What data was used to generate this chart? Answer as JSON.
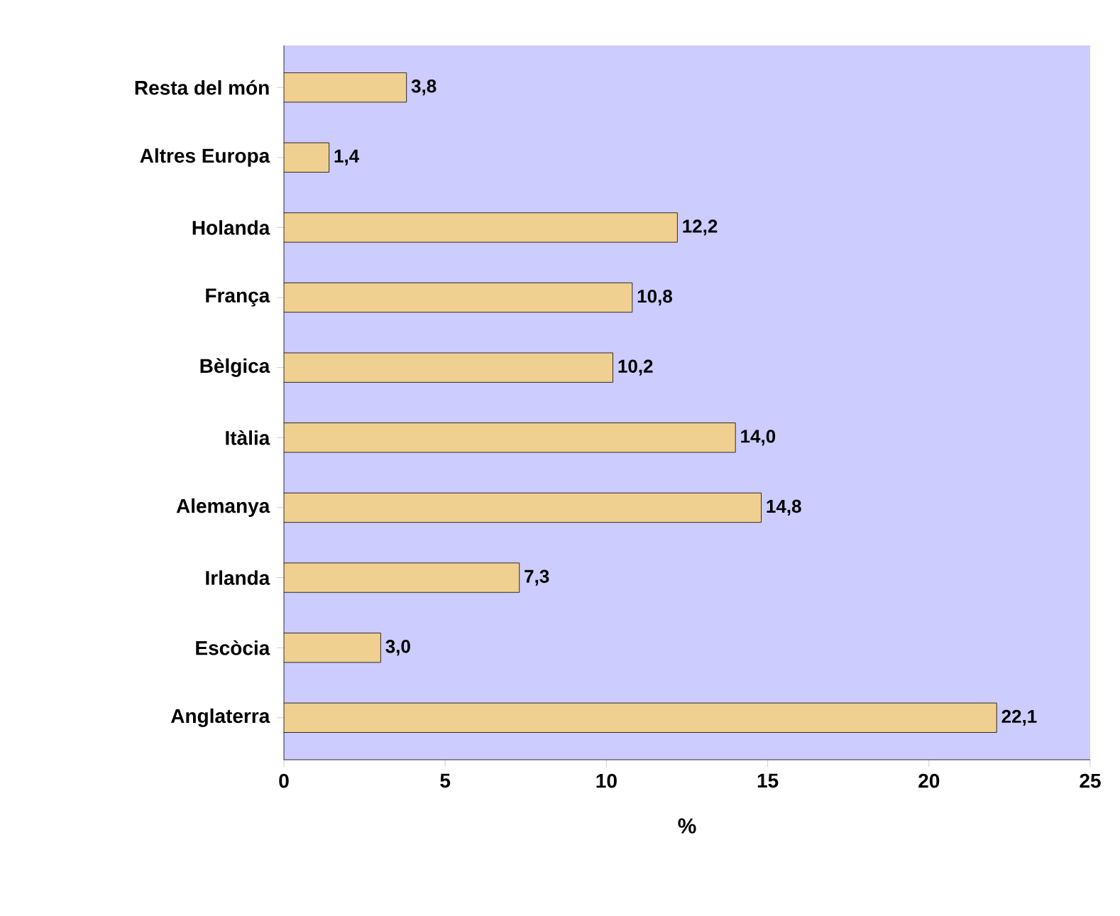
{
  "chart_data": {
    "type": "bar",
    "orientation": "horizontal",
    "xlabel": "%",
    "categories": [
      "Resta del món",
      "Altres Europa",
      "Holanda",
      "França",
      "Bèlgica",
      "Itàlia",
      "Alemanya",
      "Irlanda",
      "Escòcia",
      "Anglaterra"
    ],
    "values": [
      3.8,
      1.4,
      12.2,
      10.8,
      10.2,
      14.0,
      14.8,
      7.3,
      3.0,
      22.1
    ],
    "value_labels": [
      "3,8",
      "1,4",
      "12,2",
      "10,8",
      "10,2",
      "14,0",
      "14,8",
      "7,3",
      "3,0",
      "22,1"
    ],
    "color": "#f0d090",
    "xlim": [
      0,
      25
    ],
    "xticks": [
      0,
      5,
      10,
      15,
      20,
      25
    ],
    "grid": false
  }
}
